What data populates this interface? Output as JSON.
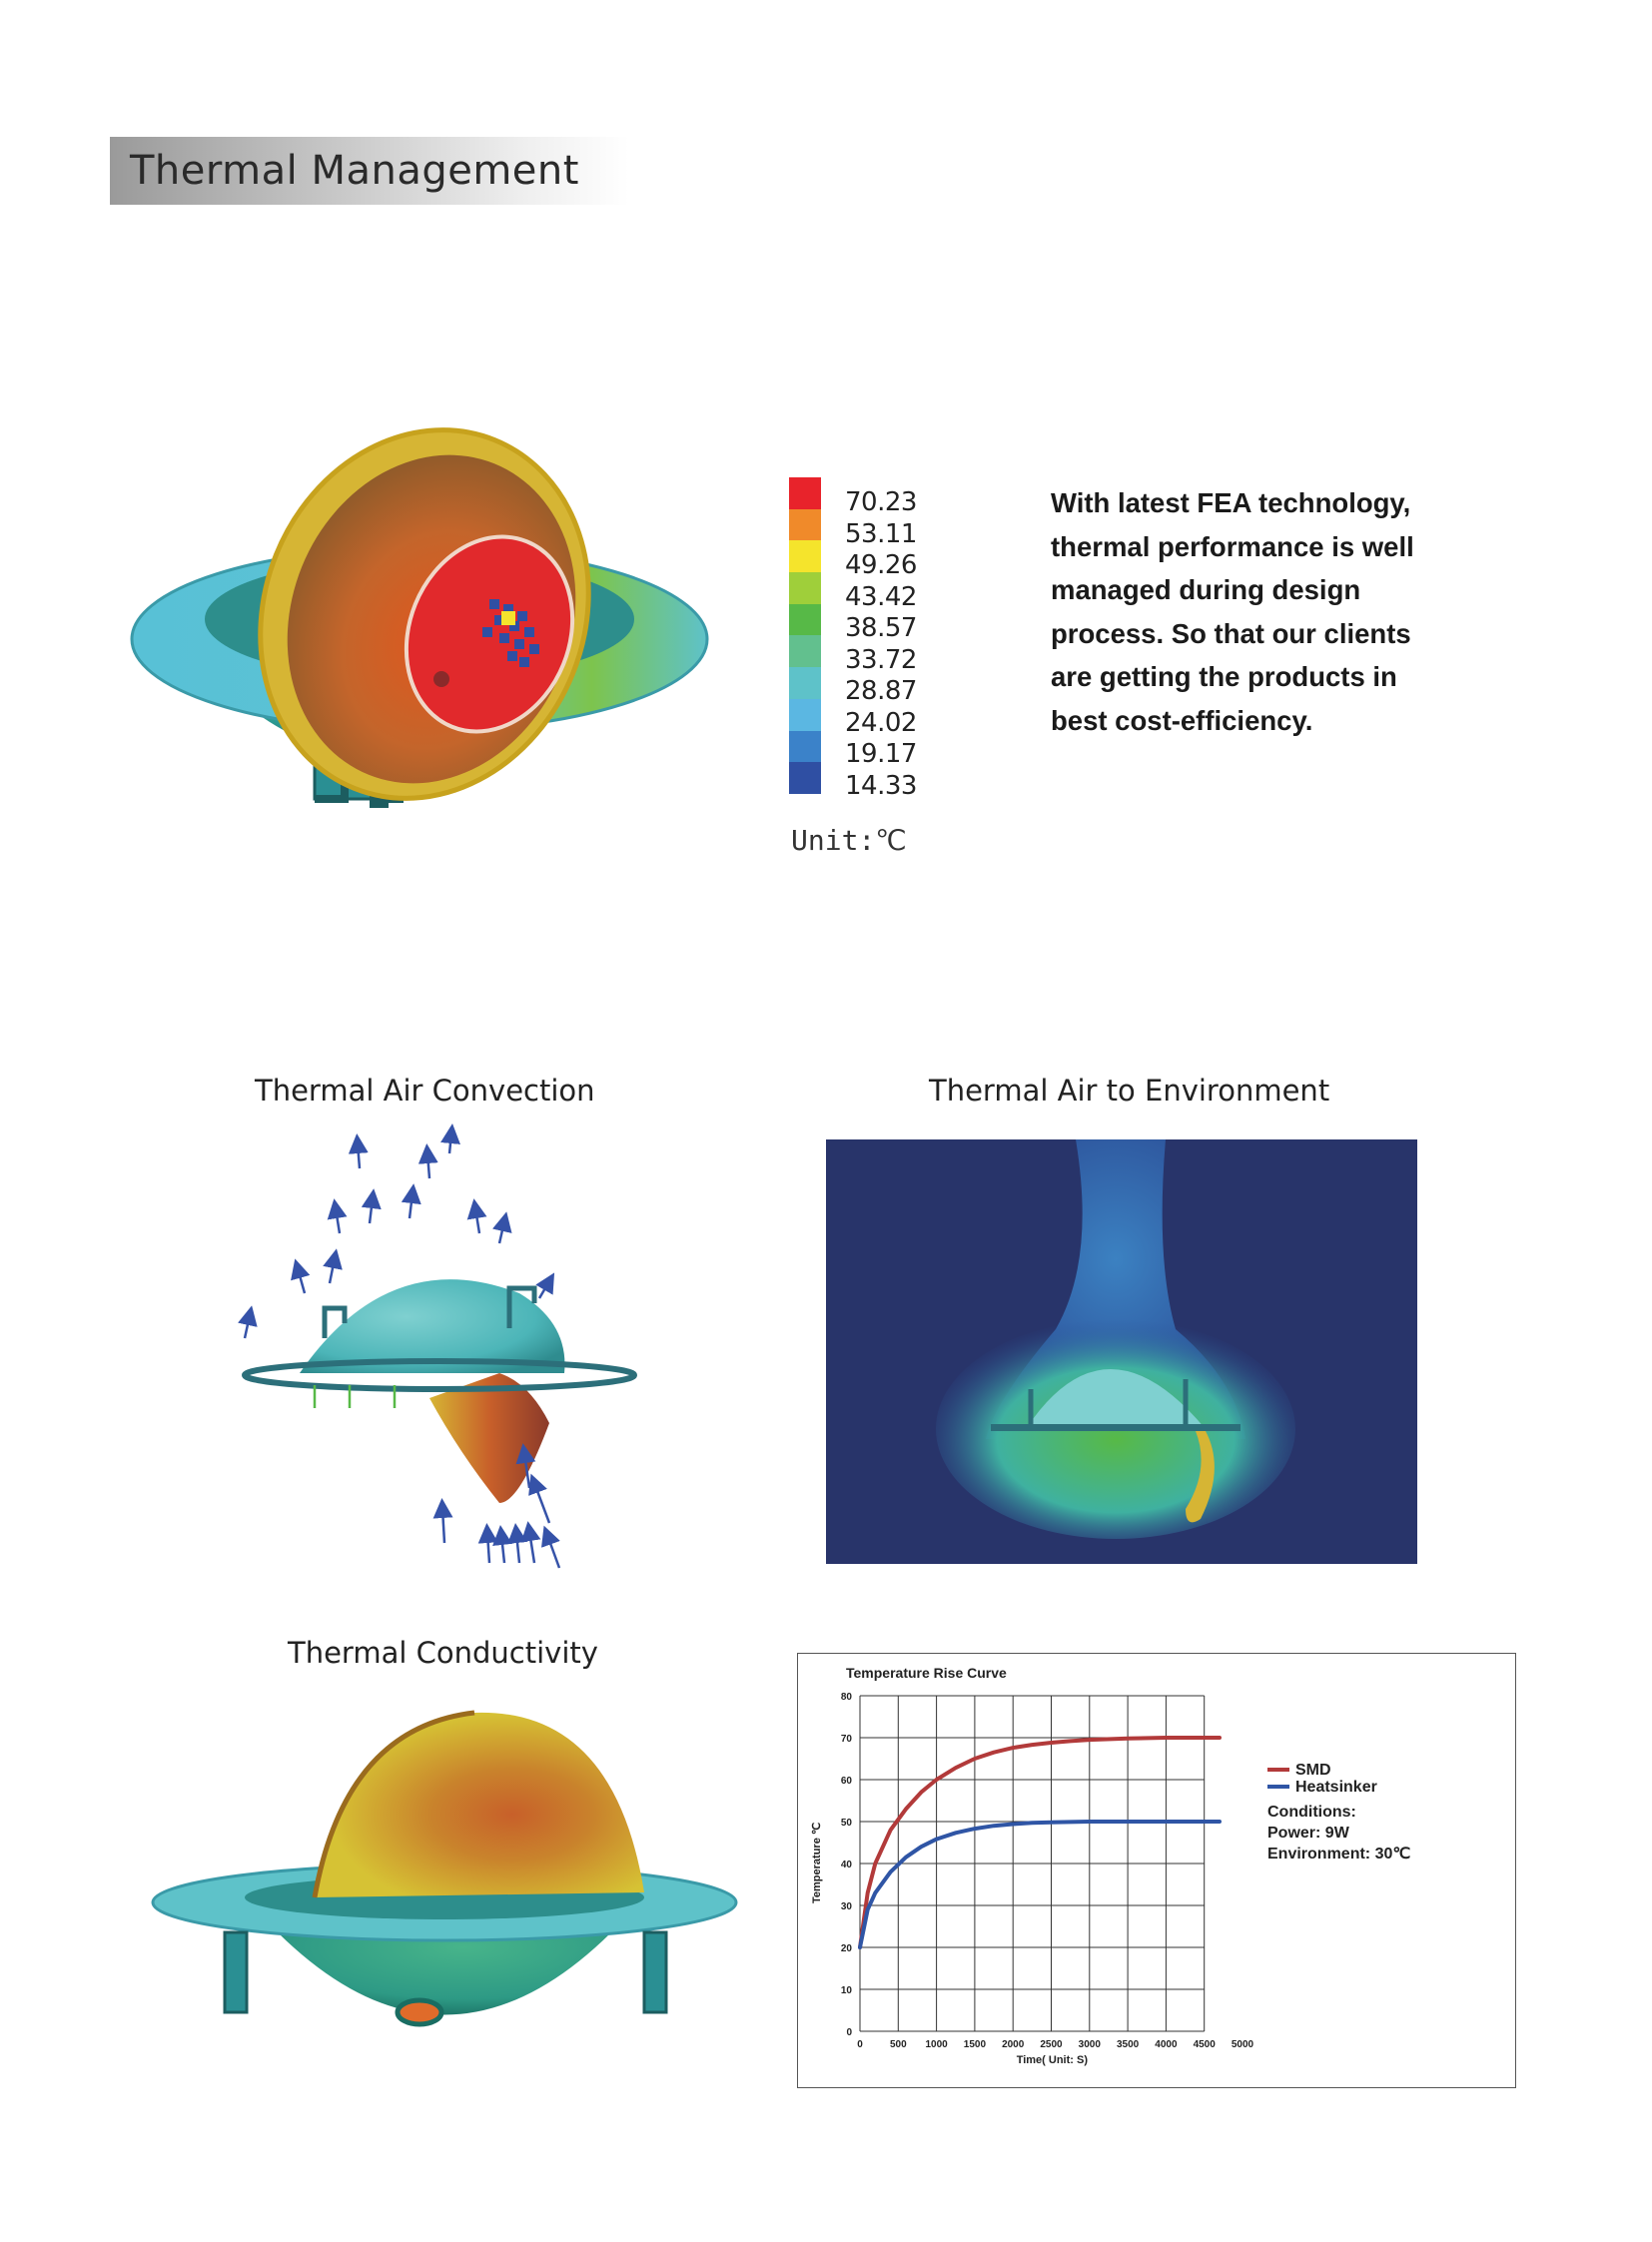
{
  "header": {
    "title": "Thermal Management"
  },
  "legend": {
    "items": [
      {
        "value": "70.23",
        "color": "#e8232b"
      },
      {
        "value": "53.11",
        "color": "#f08a2a"
      },
      {
        "value": "49.26",
        "color": "#f5e42c"
      },
      {
        "value": "43.42",
        "color": "#9fcf3a"
      },
      {
        "value": "38.57",
        "color": "#57b947"
      },
      {
        "value": "33.72",
        "color": "#62c08e"
      },
      {
        "value": "28.87",
        "color": "#5ec2c9"
      },
      {
        "value": "24.02",
        "color": "#5bb7e2"
      },
      {
        "value": "19.17",
        "color": "#3b82c9"
      },
      {
        "value": "14.33",
        "color": "#2f4fa3"
      }
    ],
    "unit": "Unit:℃"
  },
  "description": "With latest FEA technology, thermal performance is well managed during design process. So that our clients are getting the products in best cost-efficiency.",
  "captions": {
    "convection": "Thermal Air Convection",
    "environment": "Thermal Air to Environment",
    "conductivity": "Thermal Conductivity"
  },
  "chart_data": {
    "type": "line",
    "title": "Temperature Rise Curve",
    "xlabel": "Time( Unit: S)",
    "ylabel": "Temperature ℃",
    "xlim": [
      0,
      5000
    ],
    "ylim": [
      0,
      80
    ],
    "x_ticks": [
      0,
      500,
      1000,
      1500,
      2000,
      2500,
      3000,
      3500,
      4000,
      4500,
      5000
    ],
    "x_tick_labels": [
      "0",
      "500",
      "1000",
      "1500",
      "2000",
      "2500",
      "3000",
      "3500",
      "4000",
      "4500",
      "5000"
    ],
    "y_ticks": [
      0,
      10,
      20,
      30,
      40,
      50,
      60,
      70,
      80
    ],
    "grid": true,
    "legend_position": "right",
    "series": [
      {
        "name": "SMD",
        "color": "#b23a3a",
        "x": [
          0,
          100,
          200,
          400,
          600,
          800,
          1000,
          1250,
          1500,
          1750,
          2000,
          2250,
          2500,
          2750,
          3000,
          3500,
          4000,
          4700
        ],
        "y": [
          20,
          33,
          40,
          48,
          53,
          57,
          60,
          62.8,
          65,
          66.5,
          67.6,
          68.3,
          68.8,
          69.2,
          69.5,
          69.8,
          70,
          70
        ]
      },
      {
        "name": "Heatsinker",
        "color": "#2f55a5",
        "x": [
          0,
          100,
          200,
          400,
          600,
          800,
          1000,
          1250,
          1500,
          1750,
          2000,
          2250,
          2500,
          2750,
          3000,
          3500,
          4000,
          4700
        ],
        "y": [
          20,
          29,
          33,
          38,
          41.5,
          44,
          45.8,
          47.3,
          48.3,
          49,
          49.4,
          49.7,
          49.8,
          49.9,
          50,
          50,
          50,
          50
        ]
      }
    ],
    "annotations": {
      "conditions_title": "Conditions:",
      "power": "Power:  9W",
      "environment": "Environment:  30℃"
    }
  }
}
